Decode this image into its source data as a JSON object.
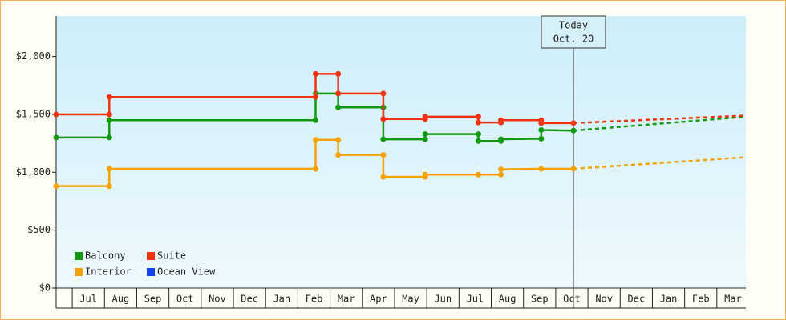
{
  "chart_data": {
    "type": "step-line",
    "xlim": [
      -0.5,
      20.9
    ],
    "xticks": [
      {
        "value": 0.5,
        "label": "Jul"
      },
      {
        "value": 1.5,
        "label": "Aug"
      },
      {
        "value": 2.5,
        "label": "Sep"
      },
      {
        "value": 3.5,
        "label": "Oct"
      },
      {
        "value": 4.5,
        "label": "Nov"
      },
      {
        "value": 5.5,
        "label": "Dec"
      },
      {
        "value": 6.5,
        "label": "Jan"
      },
      {
        "value": 7.5,
        "label": "Feb"
      },
      {
        "value": 8.5,
        "label": "Mar"
      },
      {
        "value": 9.5,
        "label": "Apr"
      },
      {
        "value": 10.5,
        "label": "May"
      },
      {
        "value": 11.5,
        "label": "Jun"
      },
      {
        "value": 12.5,
        "label": "Jul"
      },
      {
        "value": 13.5,
        "label": "Aug"
      },
      {
        "value": 14.5,
        "label": "Sep"
      },
      {
        "value": 15.5,
        "label": "Oct"
      },
      {
        "value": 16.5,
        "label": "Nov"
      },
      {
        "value": 17.5,
        "label": "Dec"
      },
      {
        "value": 18.5,
        "label": "Jan"
      },
      {
        "value": 19.5,
        "label": "Feb"
      },
      {
        "value": 20.5,
        "label": "Mar"
      }
    ],
    "ylim": [
      0,
      2350
    ],
    "yticks": [
      {
        "value": 0,
        "label": "$0"
      },
      {
        "value": 500,
        "label": "$500"
      },
      {
        "value": 1000,
        "label": "$1,000"
      },
      {
        "value": 1500,
        "label": "$1,500"
      },
      {
        "value": 2000,
        "label": "$2,000"
      }
    ],
    "legend": "lower left",
    "annotation": {
      "x": 15.55,
      "lines": [
        "Today",
        "Oct. 20"
      ]
    },
    "series": [
      {
        "name": "Balcony",
        "color": "#119911",
        "x": [
          -0.5,
          1.15,
          1.15,
          7.55,
          7.55,
          8.25,
          8.25,
          9.65,
          9.65,
          10.95,
          10.95,
          12.6,
          12.6,
          13.3,
          13.3,
          14.55,
          14.55,
          15.55
        ],
        "values": [
          1300,
          1300,
          1450,
          1450,
          1680,
          1680,
          1560,
          1560,
          1285,
          1285,
          1330,
          1330,
          1270,
          1270,
          1285,
          1290,
          1365,
          1360
        ],
        "projection": {
          "x": [
            15.55,
            20.9
          ],
          "values": [
            1360,
            1480
          ]
        }
      },
      {
        "name": "Suite",
        "color": "#ee3311",
        "x": [
          -0.5,
          1.15,
          1.15,
          7.55,
          7.55,
          8.25,
          8.25,
          9.65,
          9.65,
          10.95,
          10.95,
          12.6,
          12.6,
          13.3,
          13.3,
          14.55,
          14.55,
          15.55
        ],
        "values": [
          1500,
          1500,
          1650,
          1650,
          1850,
          1850,
          1680,
          1680,
          1460,
          1460,
          1480,
          1480,
          1430,
          1430,
          1450,
          1450,
          1425,
          1425
        ],
        "projection": {
          "x": [
            15.55,
            20.9
          ],
          "values": [
            1425,
            1490
          ]
        }
      },
      {
        "name": "Interior",
        "color": "#f5a200",
        "x": [
          -0.5,
          1.15,
          1.15,
          7.55,
          7.55,
          8.25,
          8.25,
          9.65,
          9.65,
          10.95,
          10.95,
          12.6,
          13.3,
          13.3,
          14.55,
          15.55
        ],
        "values": [
          880,
          880,
          1030,
          1030,
          1280,
          1280,
          1150,
          1150,
          960,
          960,
          980,
          980,
          980,
          1025,
          1030,
          1030
        ],
        "projection": {
          "x": [
            15.55,
            20.9
          ],
          "values": [
            1030,
            1130
          ]
        }
      },
      {
        "name": "Ocean View",
        "color": "#1144ee",
        "x": [],
        "values": []
      }
    ]
  }
}
